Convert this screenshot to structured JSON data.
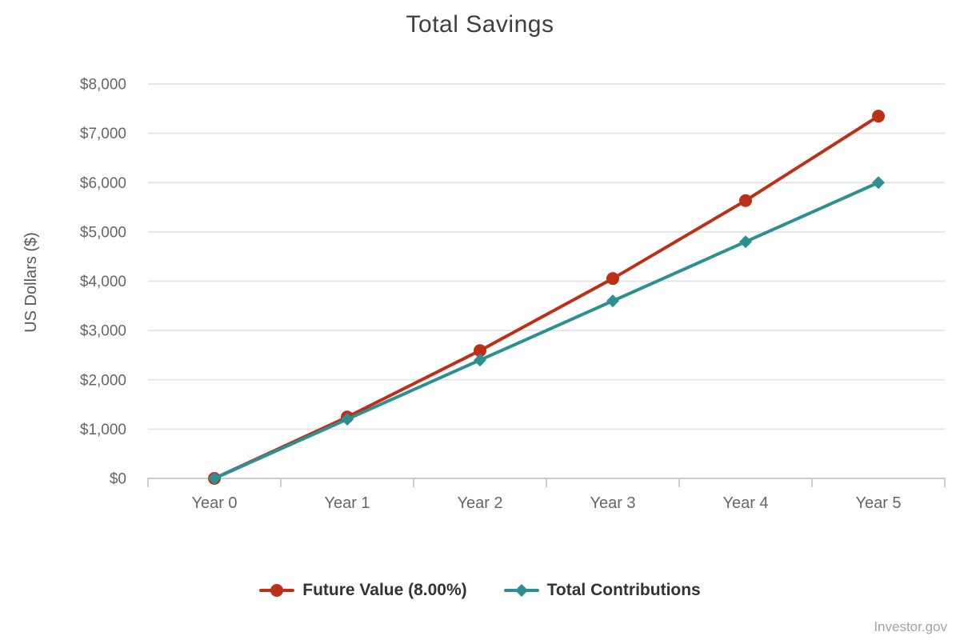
{
  "page": {
    "attribution": "Investor.gov"
  },
  "chart_data": {
    "type": "line",
    "title": "Total Savings",
    "xlabel": "",
    "ylabel": "US Dollars ($)",
    "categories": [
      "Year 0",
      "Year 1",
      "Year 2",
      "Year 3",
      "Year 4",
      "Year 5"
    ],
    "ylim": [
      0,
      8000
    ],
    "ytick_interval": 1000,
    "ytick_labels": [
      "$0",
      "$1,000",
      "$2,000",
      "$3,000",
      "$4,000",
      "$5,000",
      "$6,000",
      "$7,000",
      "$8,000"
    ],
    "grid": true,
    "legend_position": "bottom",
    "series": [
      {
        "name": "Future Value (8.00%)",
        "marker": "circle",
        "color": "#bd3018",
        "values": [
          0,
          1245,
          2593,
          4054,
          5635,
          7348
        ]
      },
      {
        "name": "Total Contributions",
        "marker": "diamond",
        "color": "#2b908f",
        "values": [
          0,
          1200,
          2400,
          3600,
          4800,
          6000
        ]
      }
    ],
    "colors": {
      "gridline": "#e6e6e6",
      "axis_line": "#c9cdd6",
      "axis_label": "#666666",
      "axis_title": "#595959",
      "title_text": "#3f3f3f",
      "legend_text": "#333333",
      "attribution_text": "#a3a3a3"
    }
  }
}
